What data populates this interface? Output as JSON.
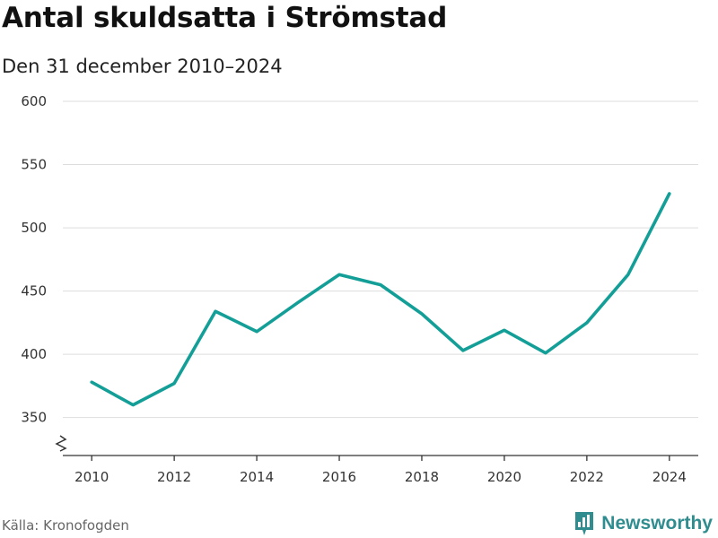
{
  "header": {
    "title": "Antal skuldsatta i Strömstad",
    "subtitle": "Den 31 december 2010–2024"
  },
  "footer": {
    "source": "Källa: Kronofogden",
    "brand": "Newsworthy"
  },
  "colors": {
    "line": "#139f97",
    "grid": "#dddddd",
    "axis": "#333333",
    "brand": "#2f8c8f"
  },
  "icons": {
    "axis_break": "zigzag-break-icon",
    "brand_logo": "bar-chart-logo-icon"
  },
  "chart_data": {
    "type": "line",
    "title": "Antal skuldsatta i Strömstad",
    "subtitle": "Den 31 december 2010–2024",
    "xlabel": "",
    "ylabel": "",
    "ylim": [
      320,
      600
    ],
    "xlim": [
      2009.3,
      2024.7
    ],
    "grid": true,
    "y_ticks": [
      350,
      400,
      450,
      500,
      550,
      600
    ],
    "x_ticks": [
      2010,
      2012,
      2014,
      2016,
      2018,
      2020,
      2022,
      2024
    ],
    "axis_break": true,
    "series": [
      {
        "name": "Antal skuldsatta",
        "x": [
          2010,
          2011,
          2012,
          2013,
          2014,
          2015,
          2016,
          2017,
          2018,
          2019,
          2020,
          2021,
          2022,
          2023,
          2024
        ],
        "values": [
          378,
          360,
          377,
          434,
          418,
          441,
          463,
          455,
          432,
          403,
          419,
          401,
          425,
          463,
          527
        ]
      }
    ]
  }
}
